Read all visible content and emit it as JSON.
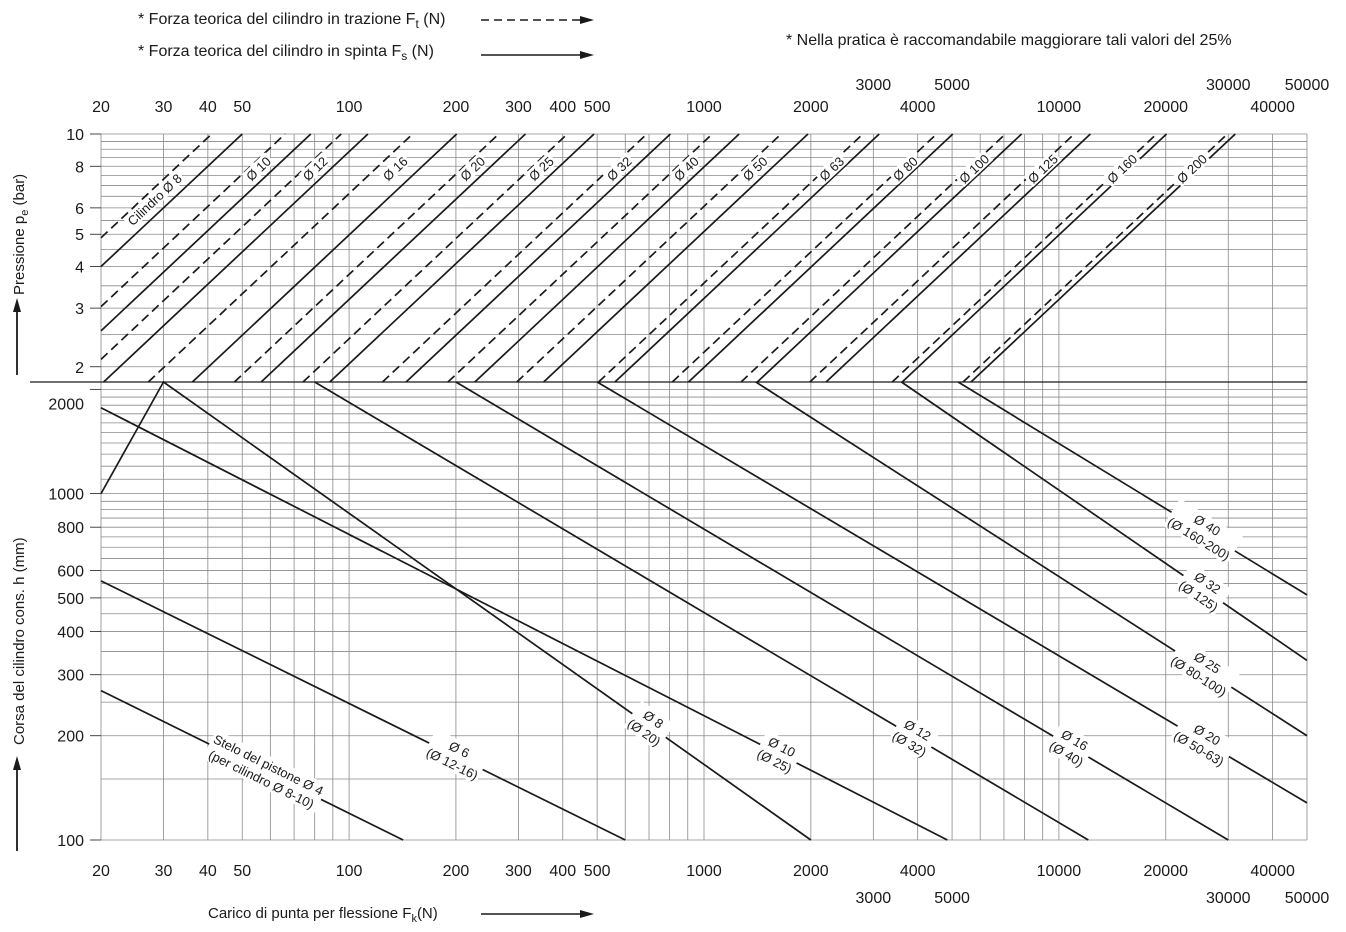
{
  "colors": {
    "ink": "#1a1a1a",
    "grid": "#8a8a8a",
    "background": "#ffffff"
  },
  "legend": {
    "traction": {
      "label": "* Forza teorica del cilindro in trazione F",
      "sub": "t",
      "unit": " (N)",
      "style": "dashed"
    },
    "thrust": {
      "label": "* Forza teorica del cilindro in spinta F",
      "sub": "s",
      "unit": " (N)",
      "style": "solid"
    },
    "note": "* Nella pratica è raccomandabile maggiorare tali valori del 25%"
  },
  "chart_data": [
    {
      "type": "line",
      "panel": "pressure",
      "ylabel": {
        "text": "Pressione p",
        "sub": "e",
        "unit": " (bar)"
      },
      "xscale": "log",
      "yscale": "log",
      "xlim": [
        20,
        50000
      ],
      "ylim": [
        1.8,
        10
      ],
      "yticks": [
        2,
        3,
        4,
        5,
        6,
        8,
        10
      ],
      "top_ticks_row1": [
        20,
        30,
        40,
        50,
        100,
        200,
        300,
        400,
        500,
        1000,
        2000,
        4000,
        10000,
        20000,
        40000
      ],
      "top_ticks_row2": [
        3000,
        5000,
        30000,
        50000
      ],
      "grid": true,
      "series": [
        {
          "name": "Cilindro Ø 8",
          "solid_at_10bar": 50,
          "dashed_at_10bar": 41,
          "label_at": 0.63
        },
        {
          "name": "Ø 10",
          "solid_at_10bar": 78,
          "dashed_at_10bar": 66,
          "label_at": 0.78
        },
        {
          "name": "Ø 12",
          "solid_at_10bar": 113,
          "dashed_at_10bar": 95,
          "label_at": 0.78
        },
        {
          "name": "Ø 16",
          "solid_at_10bar": 201,
          "dashed_at_10bar": 151,
          "label_at": 0.78
        },
        {
          "name": "Ø 20",
          "solid_at_10bar": 314,
          "dashed_at_10bar": 264,
          "label_at": 0.78
        },
        {
          "name": "Ø 25",
          "solid_at_10bar": 490,
          "dashed_at_10bar": 412,
          "label_at": 0.78
        },
        {
          "name": "Ø 32",
          "solid_at_10bar": 804,
          "dashed_at_10bar": 690,
          "label_at": 0.78
        },
        {
          "name": "Ø 40",
          "solid_at_10bar": 1256,
          "dashed_at_10bar": 1055,
          "label_at": 0.78
        },
        {
          "name": "Ø 50",
          "solid_at_10bar": 1963,
          "dashed_at_10bar": 1649,
          "label_at": 0.78
        },
        {
          "name": "Ø 63",
          "solid_at_10bar": 3117,
          "dashed_at_10bar": 2803,
          "label_at": 0.78
        },
        {
          "name": "Ø 80",
          "solid_at_10bar": 5024,
          "dashed_at_10bar": 4522,
          "label_at": 0.78
        },
        {
          "name": "Ø 100",
          "solid_at_10bar": 7850,
          "dashed_at_10bar": 7065,
          "label_at": 0.78
        },
        {
          "name": "Ø 125",
          "solid_at_10bar": 12265,
          "dashed_at_10bar": 11039,
          "label_at": 0.78
        },
        {
          "name": "Ø 160",
          "solid_at_10bar": 20096,
          "dashed_at_10bar": 18840,
          "label_at": 0.78
        },
        {
          "name": "Ø 200",
          "solid_at_10bar": 31400,
          "dashed_at_10bar": 29830,
          "label_at": 0.78
        }
      ]
    },
    {
      "type": "line",
      "panel": "stroke",
      "xlabel": {
        "text": "Carico di punta per flessione F",
        "sub": "k",
        "unit": "(N)"
      },
      "ylabel": {
        "text": "Corsa del cilindro cons. h",
        "unit": " (mm)"
      },
      "xscale": "log",
      "yscale": "log",
      "xlim": [
        20,
        50000
      ],
      "ylim": [
        100,
        2100
      ],
      "yticks": [
        100,
        200,
        300,
        400,
        500,
        600,
        800,
        1000,
        2000
      ],
      "bottom_ticks_row1": [
        20,
        30,
        40,
        50,
        100,
        200,
        300,
        400,
        500,
        1000,
        2000,
        4000,
        10000,
        20000,
        40000
      ],
      "bottom_ticks_row2": [
        3000,
        5000,
        30000,
        50000
      ],
      "grid": true,
      "series": [
        {
          "name": "Stelo del pistone Ø 4",
          "sub": "(per cilindro Ø 8-10)",
          "points": [
            [
              20,
              270
            ],
            [
              142,
              100
            ]
          ],
          "label_at_x": 58
        },
        {
          "name": "Ø 6",
          "sub": "(Ø 12-16)",
          "points": [
            [
              20,
              560
            ],
            [
              600,
              100
            ]
          ],
          "label_at_x": 200
        },
        {
          "name": "Ø 8",
          "sub": "(Ø 20)",
          "points": [
            [
              20,
              1000
            ],
            [
              30,
              2100
            ],
            [
              2000,
              100
            ]
          ],
          "label_at_x": 700
        },
        {
          "name": "Ø 10",
          "sub": "(Ø 25)",
          "points": [
            [
              20,
              1770
            ],
            [
              4850,
              100
            ]
          ],
          "label_at_x": 1620
        },
        {
          "name": "Ø 12",
          "sub": "(Ø 32)",
          "points": [
            [
              80,
              2100
            ],
            [
              12100,
              100
            ]
          ],
          "label_at_x": 3900
        },
        {
          "name": "Ø 16",
          "sub": "(Ø 40)",
          "points": [
            [
              200,
              2100
            ],
            [
              30000,
              100
            ]
          ],
          "label_at_x": 10800
        },
        {
          "name": "Ø 20",
          "sub": "(Ø 50-63)",
          "points": [
            [
              500,
              2100
            ],
            [
              50000,
              128
            ]
          ],
          "label_at_x": 25500
        },
        {
          "name": "Ø 25",
          "sub": "(Ø 80-100)",
          "points": [
            [
              1400,
              2100
            ],
            [
              50000,
              200
            ]
          ],
          "label_at_x": 25500
        },
        {
          "name": "Ø 32",
          "sub": "(Ø 125)",
          "points": [
            [
              3600,
              2100
            ],
            [
              50000,
              330
            ]
          ],
          "label_at_x": 25500
        },
        {
          "name": "Ø 40",
          "sub": "(Ø 160-200)",
          "points": [
            [
              5200,
              2100
            ],
            [
              50000,
              510
            ]
          ],
          "label_at_x": 25500
        }
      ]
    }
  ]
}
